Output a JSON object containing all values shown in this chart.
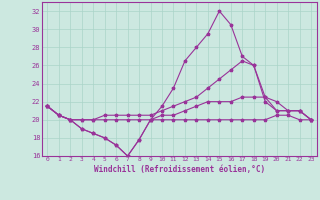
{
  "xlabel": "Windchill (Refroidissement éolien,°C)",
  "background_color": "#cce8e0",
  "grid_color": "#aad4c8",
  "line_color": "#993399",
  "spine_color": "#993399",
  "xlim": [
    -0.5,
    23.5
  ],
  "ylim": [
    16,
    33
  ],
  "yticks": [
    16,
    18,
    20,
    22,
    24,
    26,
    28,
    30,
    32
  ],
  "xticks": [
    0,
    1,
    2,
    3,
    4,
    5,
    6,
    7,
    8,
    9,
    10,
    11,
    12,
    13,
    14,
    15,
    16,
    17,
    18,
    19,
    20,
    21,
    22,
    23
  ],
  "line1_x": [
    0,
    1,
    2,
    3,
    4,
    5,
    6,
    7,
    8,
    9,
    10,
    11,
    12,
    13,
    14,
    15,
    16,
    17,
    18,
    19,
    20,
    21,
    22,
    23
  ],
  "line1_y": [
    21.5,
    20.5,
    20.0,
    19.0,
    18.5,
    18.0,
    17.2,
    16.0,
    17.8,
    20.0,
    20.0,
    20.0,
    20.0,
    20.0,
    20.0,
    20.0,
    20.0,
    20.0,
    20.0,
    20.0,
    20.5,
    20.5,
    20.0,
    20.0
  ],
  "line2_x": [
    0,
    1,
    2,
    3,
    4,
    5,
    6,
    7,
    8,
    9,
    10,
    11,
    12,
    13,
    14,
    15,
    16,
    17,
    18,
    19,
    20,
    21,
    22,
    23
  ],
  "line2_y": [
    21.5,
    20.5,
    20.0,
    19.0,
    18.5,
    18.0,
    17.2,
    16.0,
    17.8,
    20.0,
    21.5,
    23.5,
    26.5,
    28.0,
    29.5,
    32.0,
    30.5,
    27.0,
    26.0,
    22.0,
    21.0,
    21.0,
    21.0,
    20.0
  ],
  "line3_x": [
    0,
    1,
    2,
    3,
    4,
    5,
    6,
    7,
    8,
    9,
    10,
    11,
    12,
    13,
    14,
    15,
    16,
    17,
    18,
    19,
    20,
    21,
    22,
    23
  ],
  "line3_y": [
    21.5,
    20.5,
    20.0,
    20.0,
    20.0,
    20.5,
    20.5,
    20.5,
    20.5,
    20.5,
    21.0,
    21.5,
    22.0,
    22.5,
    23.5,
    24.5,
    25.5,
    26.5,
    26.0,
    22.5,
    22.0,
    21.0,
    21.0,
    20.0
  ],
  "line4_x": [
    0,
    1,
    2,
    3,
    4,
    5,
    6,
    7,
    8,
    9,
    10,
    11,
    12,
    13,
    14,
    15,
    16,
    17,
    18,
    19,
    20,
    21,
    22,
    23
  ],
  "line4_y": [
    21.5,
    20.5,
    20.0,
    20.0,
    20.0,
    20.0,
    20.0,
    20.0,
    20.0,
    20.0,
    20.5,
    20.5,
    21.0,
    21.5,
    22.0,
    22.0,
    22.0,
    22.5,
    22.5,
    22.5,
    21.0,
    21.0,
    21.0,
    20.0
  ]
}
